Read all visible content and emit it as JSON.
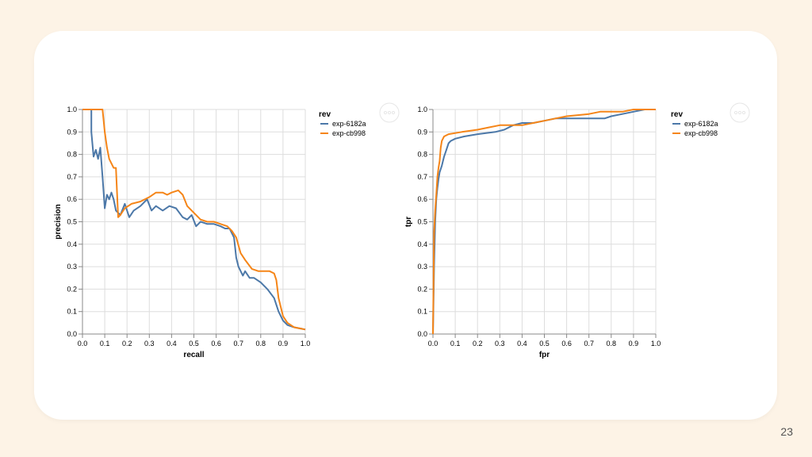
{
  "page": {
    "number": "23"
  },
  "colors": {
    "exp-6182a": "#4c78a8",
    "exp-cb998": "#f58518",
    "grid": "#dddddd",
    "background": "#fdf3e6"
  },
  "menu_icon": "ellipsis-icon",
  "chart_data": [
    {
      "type": "line",
      "title": "",
      "xlabel": "recall",
      "ylabel": "precision",
      "xlim": [
        0,
        1
      ],
      "ylim": [
        0,
        1
      ],
      "xticks": [
        "0.0",
        "0.1",
        "0.2",
        "0.3",
        "0.4",
        "0.5",
        "0.6",
        "0.7",
        "0.8",
        "0.9",
        "1.0"
      ],
      "yticks": [
        "0.0",
        "0.1",
        "0.2",
        "0.3",
        "0.4",
        "0.5",
        "0.6",
        "0.7",
        "0.8",
        "0.9",
        "1.0"
      ],
      "grid": true,
      "legend": {
        "title": "rev",
        "placement": "right"
      },
      "series": [
        {
          "name": "exp-6182a",
          "color": "#4c78a8",
          "points": [
            [
              0,
              1
            ],
            [
              0.04,
              1
            ],
            [
              0.04,
              0.9
            ],
            [
              0.05,
              0.79
            ],
            [
              0.06,
              0.82
            ],
            [
              0.07,
              0.78
            ],
            [
              0.08,
              0.83
            ],
            [
              0.09,
              0.7
            ],
            [
              0.1,
              0.56
            ],
            [
              0.11,
              0.62
            ],
            [
              0.12,
              0.6
            ],
            [
              0.13,
              0.63
            ],
            [
              0.14,
              0.6
            ],
            [
              0.15,
              0.55
            ],
            [
              0.17,
              0.53
            ],
            [
              0.19,
              0.58
            ],
            [
              0.21,
              0.52
            ],
            [
              0.23,
              0.55
            ],
            [
              0.26,
              0.57
            ],
            [
              0.29,
              0.6
            ],
            [
              0.31,
              0.55
            ],
            [
              0.33,
              0.57
            ],
            [
              0.36,
              0.55
            ],
            [
              0.39,
              0.57
            ],
            [
              0.42,
              0.56
            ],
            [
              0.45,
              0.52
            ],
            [
              0.47,
              0.51
            ],
            [
              0.49,
              0.53
            ],
            [
              0.51,
              0.48
            ],
            [
              0.53,
              0.5
            ],
            [
              0.56,
              0.49
            ],
            [
              0.59,
              0.49
            ],
            [
              0.62,
              0.48
            ],
            [
              0.64,
              0.47
            ],
            [
              0.66,
              0.47
            ],
            [
              0.68,
              0.43
            ],
            [
              0.69,
              0.34
            ],
            [
              0.7,
              0.3
            ],
            [
              0.72,
              0.26
            ],
            [
              0.73,
              0.28
            ],
            [
              0.75,
              0.25
            ],
            [
              0.77,
              0.25
            ],
            [
              0.8,
              0.23
            ],
            [
              0.83,
              0.2
            ],
            [
              0.86,
              0.16
            ],
            [
              0.88,
              0.1
            ],
            [
              0.9,
              0.06
            ],
            [
              0.92,
              0.04
            ],
            [
              0.95,
              0.03
            ],
            [
              1,
              0.02
            ]
          ]
        },
        {
          "name": "exp-cb998",
          "color": "#f58518",
          "points": [
            [
              0,
              1
            ],
            [
              0.09,
              1
            ],
            [
              0.1,
              0.9
            ],
            [
              0.11,
              0.83
            ],
            [
              0.12,
              0.78
            ],
            [
              0.13,
              0.76
            ],
            [
              0.14,
              0.74
            ],
            [
              0.15,
              0.74
            ],
            [
              0.16,
              0.52
            ],
            [
              0.17,
              0.53
            ],
            [
              0.19,
              0.56
            ],
            [
              0.22,
              0.58
            ],
            [
              0.26,
              0.59
            ],
            [
              0.3,
              0.61
            ],
            [
              0.33,
              0.63
            ],
            [
              0.34,
              0.63
            ],
            [
              0.36,
              0.63
            ],
            [
              0.38,
              0.62
            ],
            [
              0.4,
              0.63
            ],
            [
              0.43,
              0.64
            ],
            [
              0.45,
              0.62
            ],
            [
              0.47,
              0.57
            ],
            [
              0.5,
              0.54
            ],
            [
              0.53,
              0.51
            ],
            [
              0.56,
              0.5
            ],
            [
              0.59,
              0.5
            ],
            [
              0.62,
              0.49
            ],
            [
              0.65,
              0.48
            ],
            [
              0.67,
              0.46
            ],
            [
              0.69,
              0.43
            ],
            [
              0.71,
              0.36
            ],
            [
              0.73,
              0.33
            ],
            [
              0.76,
              0.29
            ],
            [
              0.79,
              0.28
            ],
            [
              0.82,
              0.28
            ],
            [
              0.84,
              0.28
            ],
            [
              0.86,
              0.27
            ],
            [
              0.87,
              0.24
            ],
            [
              0.88,
              0.16
            ],
            [
              0.9,
              0.08
            ],
            [
              0.92,
              0.05
            ],
            [
              0.95,
              0.03
            ],
            [
              1,
              0.02
            ]
          ]
        }
      ]
    },
    {
      "type": "line",
      "title": "",
      "xlabel": "fpr",
      "ylabel": "tpr",
      "xlim": [
        0,
        1
      ],
      "ylim": [
        0,
        1
      ],
      "xticks": [
        "0.0",
        "0.1",
        "0.2",
        "0.3",
        "0.4",
        "0.5",
        "0.6",
        "0.7",
        "0.8",
        "0.9",
        "1.0"
      ],
      "yticks": [
        "0.0",
        "0.1",
        "0.2",
        "0.3",
        "0.4",
        "0.5",
        "0.6",
        "0.7",
        "0.8",
        "0.9",
        "1.0"
      ],
      "grid": true,
      "legend": {
        "title": "rev",
        "placement": "right"
      },
      "series": [
        {
          "name": "exp-6182a",
          "color": "#4c78a8",
          "points": [
            [
              0,
              0
            ],
            [
              0.005,
              0.3
            ],
            [
              0.01,
              0.5
            ],
            [
              0.015,
              0.6
            ],
            [
              0.02,
              0.65
            ],
            [
              0.025,
              0.69
            ],
            [
              0.03,
              0.72
            ],
            [
              0.04,
              0.75
            ],
            [
              0.05,
              0.79
            ],
            [
              0.06,
              0.82
            ],
            [
              0.07,
              0.85
            ],
            [
              0.08,
              0.86
            ],
            [
              0.1,
              0.87
            ],
            [
              0.14,
              0.88
            ],
            [
              0.2,
              0.89
            ],
            [
              0.28,
              0.9
            ],
            [
              0.32,
              0.91
            ],
            [
              0.36,
              0.93
            ],
            [
              0.4,
              0.94
            ],
            [
              0.45,
              0.94
            ],
            [
              0.5,
              0.95
            ],
            [
              0.55,
              0.96
            ],
            [
              0.62,
              0.96
            ],
            [
              0.7,
              0.96
            ],
            [
              0.77,
              0.96
            ],
            [
              0.8,
              0.97
            ],
            [
              0.85,
              0.98
            ],
            [
              0.9,
              0.99
            ],
            [
              0.95,
              1
            ],
            [
              1,
              1
            ]
          ]
        },
        {
          "name": "exp-cb998",
          "color": "#f58518",
          "points": [
            [
              0,
              0
            ],
            [
              0.005,
              0.45
            ],
            [
              0.01,
              0.55
            ],
            [
              0.015,
              0.62
            ],
            [
              0.02,
              0.7
            ],
            [
              0.025,
              0.74
            ],
            [
              0.03,
              0.77
            ],
            [
              0.035,
              0.83
            ],
            [
              0.04,
              0.86
            ],
            [
              0.05,
              0.88
            ],
            [
              0.07,
              0.89
            ],
            [
              0.13,
              0.9
            ],
            [
              0.2,
              0.91
            ],
            [
              0.25,
              0.92
            ],
            [
              0.3,
              0.93
            ],
            [
              0.4,
              0.93
            ],
            [
              0.45,
              0.94
            ],
            [
              0.5,
              0.95
            ],
            [
              0.55,
              0.96
            ],
            [
              0.6,
              0.97
            ],
            [
              0.7,
              0.98
            ],
            [
              0.75,
              0.99
            ],
            [
              0.85,
              0.99
            ],
            [
              0.9,
              1
            ],
            [
              1,
              1
            ]
          ]
        }
      ]
    }
  ]
}
